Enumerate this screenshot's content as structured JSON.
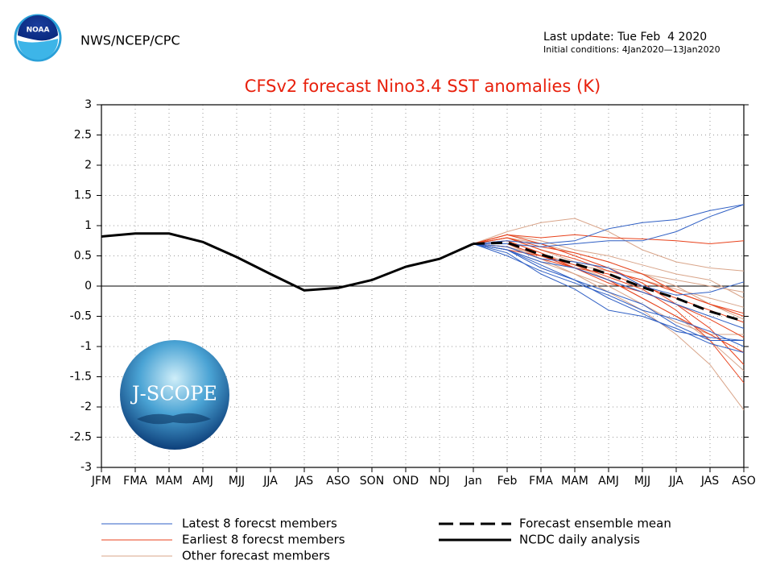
{
  "chart_data": {
    "type": "line",
    "source": "NWS/NCEP/CPC",
    "last_update": "Last update: Tue Feb  4 2020",
    "initial_conditions": "Initial conditions: 4Jan2020—13Jan2020",
    "title": "CFSv2 forecast Nino3.4 SST anomalies (K)",
    "categories": [
      "JFM",
      "FMA",
      "MAM",
      "AMJ",
      "MJJ",
      "JJA",
      "JAS",
      "ASO",
      "SON",
      "OND",
      "NDJ",
      "Jan",
      "Feb",
      "FMA",
      "MAM",
      "AMJ",
      "MJJ",
      "JJA",
      "JAS",
      "ASO"
    ],
    "ylim": [
      -3,
      3
    ],
    "yticks": [
      3,
      2.5,
      2,
      1.5,
      1,
      0.5,
      0,
      -0.5,
      -1,
      -1.5,
      -2,
      -2.5,
      -3
    ],
    "grid": true,
    "member_groups": [
      {
        "name": "Other forecast members",
        "color": "#d9a58a",
        "members": [
          [
            null,
            null,
            null,
            null,
            null,
            null,
            null,
            null,
            null,
            null,
            null,
            0.7,
            0.9,
            1.05,
            1.12,
            0.9,
            0.6,
            0.4,
            0.3,
            0.25
          ],
          [
            null,
            null,
            null,
            null,
            null,
            null,
            null,
            null,
            null,
            null,
            null,
            0.7,
            0.8,
            0.6,
            0.4,
            0.3,
            0.2,
            0.1,
            0.0,
            -0.1
          ],
          [
            null,
            null,
            null,
            null,
            null,
            null,
            null,
            null,
            null,
            null,
            null,
            0.7,
            0.7,
            0.45,
            0.2,
            -0.1,
            -0.4,
            -0.8,
            -1.3,
            -2.05
          ],
          [
            null,
            null,
            null,
            null,
            null,
            null,
            null,
            null,
            null,
            null,
            null,
            0.7,
            0.75,
            0.55,
            0.35,
            0.1,
            -0.2,
            -0.5,
            -0.9,
            -1.4
          ],
          [
            null,
            null,
            null,
            null,
            null,
            null,
            null,
            null,
            null,
            null,
            null,
            0.7,
            0.6,
            0.4,
            0.2,
            0.0,
            -0.3,
            -0.6,
            -0.8,
            -0.8
          ],
          [
            null,
            null,
            null,
            null,
            null,
            null,
            null,
            null,
            null,
            null,
            null,
            0.7,
            0.85,
            0.75,
            0.6,
            0.5,
            0.35,
            0.2,
            0.1,
            -0.2
          ],
          [
            null,
            null,
            null,
            null,
            null,
            null,
            null,
            null,
            null,
            null,
            null,
            0.7,
            0.65,
            0.5,
            0.35,
            0.25,
            0.1,
            -0.05,
            -0.2,
            -0.35
          ],
          [
            null,
            null,
            null,
            null,
            null,
            null,
            null,
            null,
            null,
            null,
            null,
            0.7,
            0.8,
            0.7,
            0.55,
            0.4,
            0.2,
            0.0,
            -0.3,
            -0.55
          ]
        ]
      },
      {
        "name": "Earliest 8 forecst members",
        "color": "#e8421c",
        "members": [
          [
            null,
            null,
            null,
            null,
            null,
            null,
            null,
            null,
            null,
            null,
            null,
            0.7,
            0.85,
            0.8,
            0.85,
            0.8,
            0.78,
            0.75,
            0.7,
            0.75
          ],
          [
            null,
            null,
            null,
            null,
            null,
            null,
            null,
            null,
            null,
            null,
            null,
            0.7,
            0.8,
            0.65,
            0.55,
            0.4,
            0.2,
            -0.1,
            -0.3,
            -0.45
          ],
          [
            null,
            null,
            null,
            null,
            null,
            null,
            null,
            null,
            null,
            null,
            null,
            0.7,
            0.75,
            0.55,
            0.3,
            0.1,
            -0.2,
            -0.5,
            -0.8,
            -1.1
          ],
          [
            null,
            null,
            null,
            null,
            null,
            null,
            null,
            null,
            null,
            null,
            null,
            0.7,
            0.85,
            0.7,
            0.5,
            0.3,
            0.05,
            -0.3,
            -0.7,
            -1.3
          ],
          [
            null,
            null,
            null,
            null,
            null,
            null,
            null,
            null,
            null,
            null,
            null,
            0.7,
            0.7,
            0.5,
            0.35,
            0.15,
            -0.05,
            -0.4,
            -0.9,
            -1.6
          ],
          [
            null,
            null,
            null,
            null,
            null,
            null,
            null,
            null,
            null,
            null,
            null,
            0.7,
            0.65,
            0.45,
            0.3,
            0.2,
            0.0,
            -0.2,
            -0.4,
            -0.6
          ],
          [
            null,
            null,
            null,
            null,
            null,
            null,
            null,
            null,
            null,
            null,
            null,
            0.7,
            0.8,
            0.6,
            0.45,
            0.25,
            0.1,
            -0.1,
            -0.3,
            -0.5
          ],
          [
            null,
            null,
            null,
            null,
            null,
            null,
            null,
            null,
            null,
            null,
            null,
            0.7,
            0.6,
            0.5,
            0.3,
            0.05,
            -0.1,
            -0.3,
            -0.55,
            -0.85
          ]
        ]
      },
      {
        "name": "Latest 8 forecst members",
        "color": "#2f5fc4",
        "members": [
          [
            null,
            null,
            null,
            null,
            null,
            null,
            null,
            null,
            null,
            null,
            null,
            0.7,
            0.75,
            0.7,
            0.75,
            0.95,
            1.05,
            1.1,
            1.25,
            1.35
          ],
          [
            null,
            null,
            null,
            null,
            null,
            null,
            null,
            null,
            null,
            null,
            null,
            0.7,
            0.7,
            0.65,
            0.7,
            0.75,
            0.75,
            0.9,
            1.15,
            1.35
          ],
          [
            null,
            null,
            null,
            null,
            null,
            null,
            null,
            null,
            null,
            null,
            null,
            0.7,
            0.6,
            0.35,
            0.1,
            -0.2,
            -0.45,
            -0.75,
            -0.85,
            -0.9
          ],
          [
            null,
            null,
            null,
            null,
            null,
            null,
            null,
            null,
            null,
            null,
            null,
            0.7,
            0.55,
            0.2,
            -0.05,
            -0.4,
            -0.5,
            -0.7,
            -0.95,
            -1.1
          ],
          [
            null,
            null,
            null,
            null,
            null,
            null,
            null,
            null,
            null,
            null,
            null,
            0.7,
            0.5,
            0.25,
            0.05,
            -0.15,
            -0.4,
            -0.55,
            -0.75,
            -1.0
          ],
          [
            null,
            null,
            null,
            null,
            null,
            null,
            null,
            null,
            null,
            null,
            null,
            0.7,
            0.6,
            0.4,
            0.3,
            0.1,
            -0.1,
            -0.3,
            -0.5,
            -0.7
          ],
          [
            null,
            null,
            null,
            null,
            null,
            null,
            null,
            null,
            null,
            null,
            null,
            0.7,
            0.65,
            0.45,
            0.4,
            0.3,
            0.0,
            -0.15,
            -0.1,
            0.07
          ],
          [
            null,
            null,
            null,
            null,
            null,
            null,
            null,
            null,
            null,
            null,
            null,
            0.7,
            0.6,
            0.3,
            0.1,
            -0.1,
            -0.3,
            -0.65,
            -0.9,
            -0.9
          ]
        ]
      }
    ],
    "series": [
      {
        "name": "Forecast ensemble mean",
        "color": "#000000",
        "style": "dashed",
        "values": [
          null,
          null,
          null,
          null,
          null,
          null,
          null,
          null,
          null,
          null,
          null,
          0.7,
          0.72,
          0.52,
          0.37,
          0.2,
          -0.02,
          -0.2,
          -0.42,
          -0.58
        ]
      },
      {
        "name": "NCDC daily analysis",
        "color": "#000000",
        "style": "solid",
        "values": [
          0.82,
          0.87,
          0.87,
          0.73,
          0.48,
          0.2,
          -0.07,
          -0.03,
          0.1,
          0.32,
          0.45,
          0.7,
          null,
          null,
          null,
          null,
          null,
          null,
          null,
          null
        ]
      }
    ]
  },
  "logos": {
    "noaa": "NOAA",
    "jscope": "J-SCOPE"
  }
}
